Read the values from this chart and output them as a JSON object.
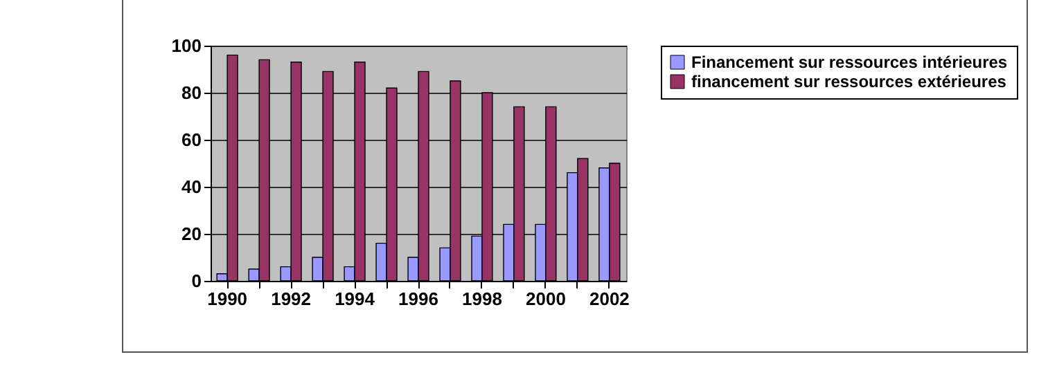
{
  "chart_data": {
    "type": "bar",
    "categories": [
      "1990",
      null,
      "1992",
      null,
      "1994",
      null,
      "1996",
      null,
      "1998",
      null,
      "2000",
      null,
      "2002"
    ],
    "series": [
      {
        "name": "Financement sur ressources intérieures",
        "color": "#9999ff",
        "values": [
          3,
          5,
          6,
          10,
          6,
          16,
          10,
          14,
          19,
          24,
          24,
          46,
          48
        ]
      },
      {
        "name": "financement sur ressources extérieures",
        "color": "#993366",
        "values": [
          96,
          94,
          93,
          89,
          93,
          82,
          89,
          85,
          80,
          74,
          74,
          52,
          50
        ]
      }
    ],
    "ylim": [
      0,
      100
    ],
    "yticks": [
      0,
      20,
      40,
      60,
      80,
      100
    ],
    "grid": "y",
    "legend": "right"
  }
}
